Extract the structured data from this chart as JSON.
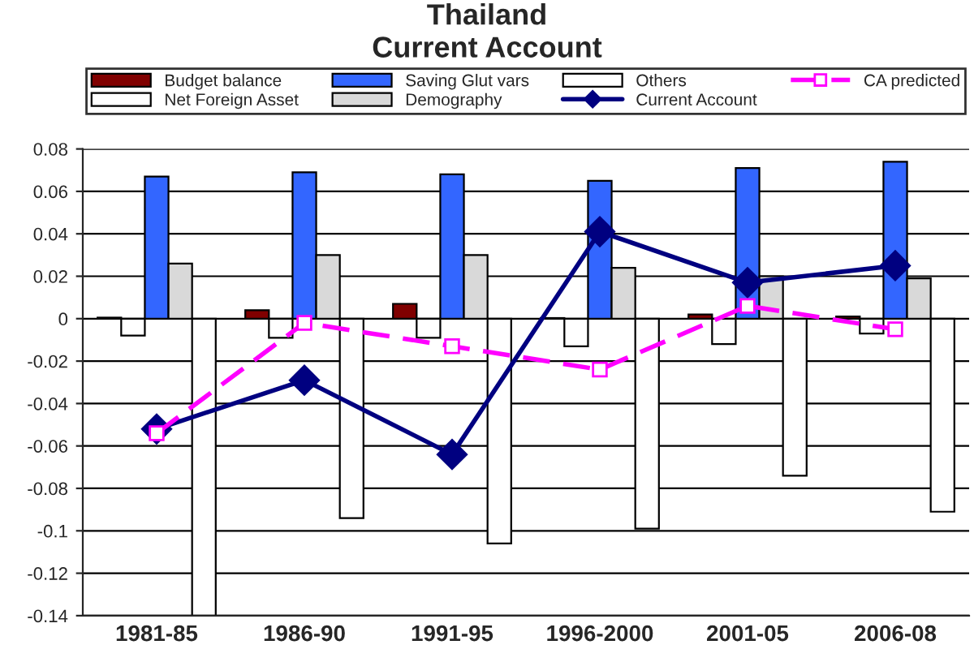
{
  "chart_data": {
    "type": "bar",
    "title": "Thailand",
    "subtitle": "Current Account",
    "categories": [
      "1981-85",
      "1986-90",
      "1991-95",
      "1996-2000",
      "2001-05",
      "2006-08"
    ],
    "series": [
      {
        "name": "Budget balance",
        "color": "#800000",
        "values": [
          0.0005,
          0.004,
          0.007,
          0.0003,
          0.002,
          0.001
        ]
      },
      {
        "name": "Net Foreign Asset",
        "color": "#ffffff",
        "values": [
          -0.008,
          -0.009,
          -0.009,
          -0.013,
          -0.012,
          -0.007
        ]
      },
      {
        "name": "Saving Glut vars",
        "color": "#3366ff",
        "values": [
          0.067,
          0.069,
          0.068,
          0.065,
          0.071,
          0.074
        ]
      },
      {
        "name": "Demography",
        "color": "#d9d9d9",
        "values": [
          0.026,
          0.03,
          0.03,
          0.024,
          0.02,
          0.019
        ]
      },
      {
        "name": "Others",
        "color": "#ffffff",
        "values": [
          -0.14,
          -0.094,
          -0.106,
          -0.099,
          -0.074,
          -0.091
        ]
      },
      {
        "name": "Current Account",
        "type": "line",
        "color": "#000080",
        "marker": "diamond",
        "line_style": "solid",
        "values": [
          -0.052,
          -0.029,
          -0.064,
          0.041,
          0.017,
          0.025
        ]
      },
      {
        "name": "CA predicted",
        "type": "line",
        "color": "#ff00ff",
        "marker": "square",
        "line_style": "dashed",
        "values": [
          -0.054,
          -0.002,
          -0.013,
          -0.024,
          0.006,
          -0.005
        ]
      }
    ],
    "ylim": [
      -0.14,
      0.08
    ],
    "yticks": [
      {
        "value": -0.14,
        "label": "-0.14"
      },
      {
        "value": -0.12,
        "label": "-0.12"
      },
      {
        "value": -0.1,
        "label": "-0.1"
      },
      {
        "value": -0.08,
        "label": "-0.08"
      },
      {
        "value": -0.06,
        "label": "-0.06"
      },
      {
        "value": -0.04,
        "label": "-0.04"
      },
      {
        "value": -0.02,
        "label": "-0.02"
      },
      0,
      0.02,
      0.04,
      0.06,
      0.08
    ],
    "grid": "y",
    "legend": "top"
  }
}
